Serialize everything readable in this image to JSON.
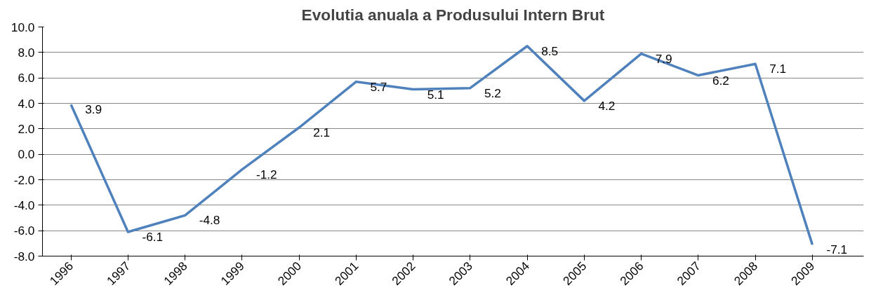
{
  "chart_data": {
    "type": "line",
    "title": "Evolutia anuala a Produsului Intern Brut",
    "categories": [
      "1996",
      "1997",
      "1998",
      "1999",
      "2000",
      "2001",
      "2002",
      "2003",
      "2004",
      "2005",
      "2006",
      "2007",
      "2008",
      "2009"
    ],
    "series": [
      {
        "color": "#4f81bd",
        "values": [
          3.9,
          -6.1,
          -4.8,
          -1.2,
          2.1,
          5.7,
          5.1,
          5.2,
          8.5,
          4.2,
          7.9,
          6.2,
          7.1,
          -7.1
        ],
        "value_labels": [
          "3.9",
          "-6.1",
          "-4.8",
          "-1.2",
          "2.1",
          "5.7",
          "5.1",
          "5.2",
          "8.5",
          "4.2",
          "7.9",
          "6.2",
          "7.1",
          "-7.1"
        ]
      }
    ],
    "ylim": [
      -8,
      10
    ],
    "yticks": [
      {
        "value": -8,
        "label": "-8.0"
      },
      {
        "value": -6,
        "label": "-6.0"
      },
      {
        "value": -4,
        "label": "-4.0"
      },
      {
        "value": -2,
        "label": "-2.0"
      },
      {
        "value": 0,
        "label": "0.0"
      },
      {
        "value": 2,
        "label": "2.0"
      },
      {
        "value": 4,
        "label": "4.0"
      },
      {
        "value": 6,
        "label": "6.0"
      },
      {
        "value": 8,
        "label": "8.0"
      },
      {
        "value": 10,
        "label": "10.0"
      }
    ],
    "grid": "y",
    "marker": "none",
    "line_style": "solid"
  }
}
